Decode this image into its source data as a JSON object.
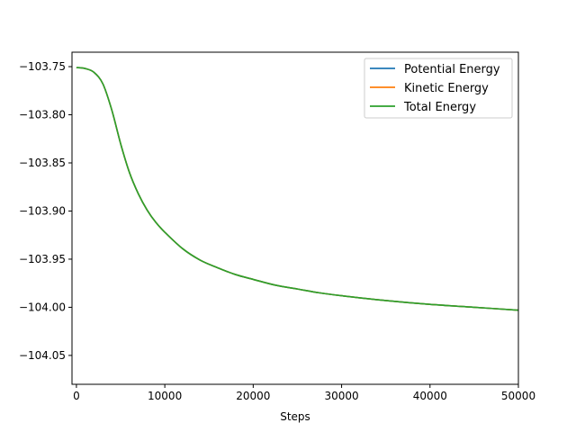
{
  "chart_data": {
    "type": "line",
    "title": "",
    "xlabel": "Steps",
    "ylabel": "",
    "xlim": [
      -500,
      50000
    ],
    "ylim": [
      -104.08,
      -103.735
    ],
    "xticks": [
      0,
      10000,
      20000,
      30000,
      40000,
      50000
    ],
    "xtick_labels": [
      "0",
      "10000",
      "20000",
      "30000",
      "40000",
      "50000"
    ],
    "yticks": [
      -103.75,
      -103.8,
      -103.85,
      -103.9,
      -103.95,
      -104.0,
      -104.05
    ],
    "ytick_labels": [
      "−103.75",
      "−103.80",
      "−103.85",
      "−103.90",
      "−103.95",
      "−104.00",
      "−104.05"
    ],
    "grid": false,
    "legend_position": "top-right",
    "x": [
      0,
      1000,
      2000,
      3000,
      4000,
      5000,
      6000,
      7000,
      8000,
      9000,
      10000,
      12000,
      14000,
      16000,
      18000,
      20000,
      22500,
      25000,
      27500,
      30000,
      35000,
      40000,
      45000,
      50000
    ],
    "series": [
      {
        "name": "Potential Energy",
        "color": "#1f77b4",
        "values": [
          -103.751,
          -103.752,
          -103.756,
          -103.768,
          -103.795,
          -103.83,
          -103.86,
          -103.882,
          -103.899,
          -103.912,
          -103.922,
          -103.939,
          -103.951,
          -103.959,
          -103.966,
          -103.971,
          -103.977,
          -103.981,
          -103.985,
          -103.988,
          -103.993,
          -103.997,
          -104.0,
          -104.003
        ]
      },
      {
        "name": "Kinetic Energy",
        "color": "#ff7f0e",
        "values": [
          -103.751,
          -103.752,
          -103.756,
          -103.768,
          -103.795,
          -103.83,
          -103.86,
          -103.882,
          -103.899,
          -103.912,
          -103.922,
          -103.939,
          -103.951,
          -103.959,
          -103.966,
          -103.971,
          -103.977,
          -103.981,
          -103.985,
          -103.988,
          -103.993,
          -103.997,
          -104.0,
          -104.003
        ]
      },
      {
        "name": "Total Energy",
        "color": "#2ca02c",
        "values": [
          -103.751,
          -103.752,
          -103.756,
          -103.768,
          -103.795,
          -103.83,
          -103.86,
          -103.882,
          -103.899,
          -103.912,
          -103.922,
          -103.939,
          -103.951,
          -103.959,
          -103.966,
          -103.971,
          -103.977,
          -103.981,
          -103.985,
          -103.988,
          -103.993,
          -103.997,
          -104.0,
          -104.003
        ]
      }
    ]
  }
}
